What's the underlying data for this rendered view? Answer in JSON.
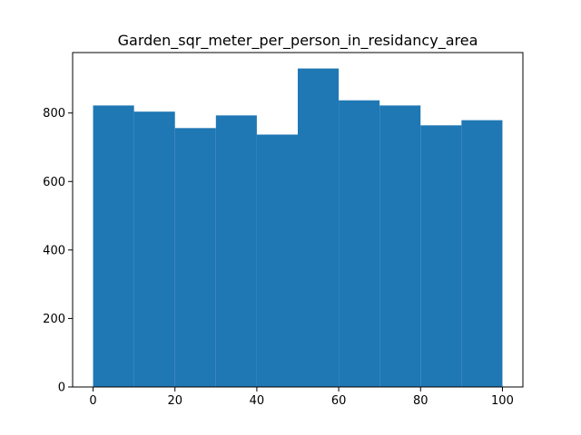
{
  "chart_data": {
    "type": "bar",
    "title": "Garden_sqr_meter_per_person_in_residancy_area",
    "xlabel": "",
    "ylabel": "",
    "bins": [
      {
        "start": 0,
        "end": 10,
        "count": 822
      },
      {
        "start": 10,
        "end": 20,
        "count": 804
      },
      {
        "start": 20,
        "end": 30,
        "count": 756
      },
      {
        "start": 30,
        "end": 40,
        "count": 793
      },
      {
        "start": 40,
        "end": 50,
        "count": 737
      },
      {
        "start": 50,
        "end": 60,
        "count": 930
      },
      {
        "start": 60,
        "end": 70,
        "count": 837
      },
      {
        "start": 70,
        "end": 80,
        "count": 822
      },
      {
        "start": 80,
        "end": 90,
        "count": 764
      },
      {
        "start": 90,
        "end": 100,
        "count": 779
      }
    ],
    "xlim": [
      -5,
      105
    ],
    "ylim": [
      0,
      976.5
    ],
    "xticks": [
      "0",
      "20",
      "40",
      "60",
      "80",
      "100"
    ],
    "yticks": [
      "0",
      "200",
      "400",
      "600",
      "800"
    ],
    "grid": false,
    "colors": {
      "bar": "#1f77b4",
      "axis": "#000000",
      "background": "#ffffff"
    }
  }
}
